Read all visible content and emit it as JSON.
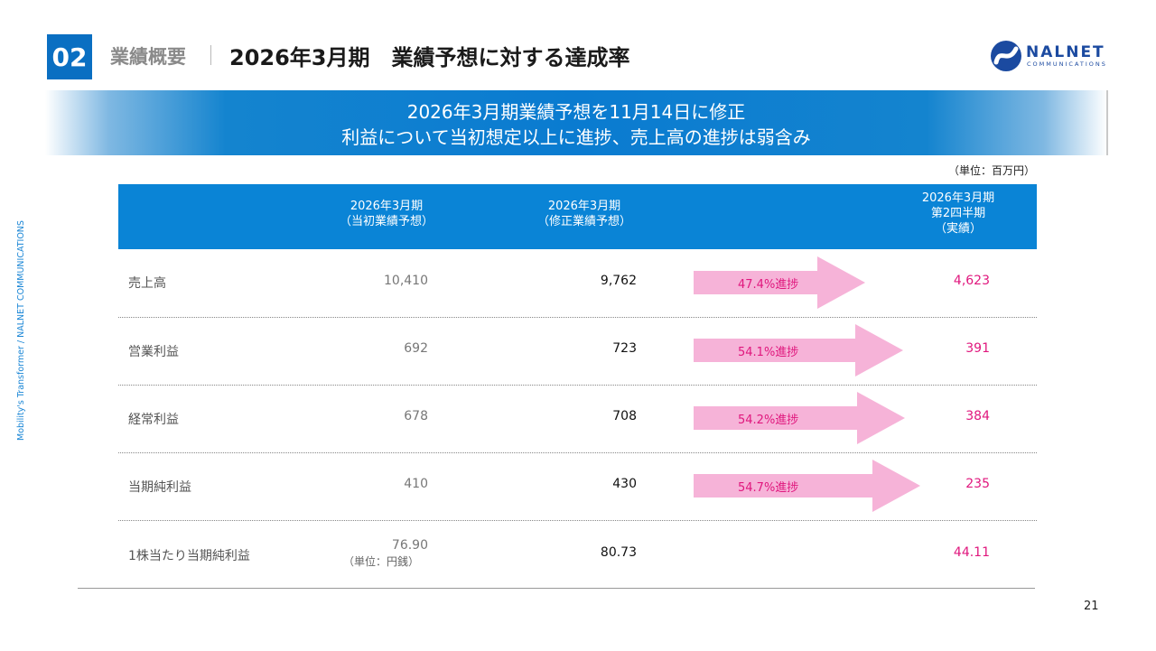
{
  "header": {
    "section_number": "02",
    "section_label": "業績概要",
    "title": "2026年3月期　業績予想に対する達成率"
  },
  "logo": {
    "name": "NALNET",
    "sub": "COMMUNICATIONS",
    "brand_color": "#1b4aa0"
  },
  "banner": {
    "line1": "2026年3月期業績予想を11月14日に修正",
    "line2": "利益について当初想定以上に進捗、売上高の進捗は弱含み",
    "color": "#0a7bd0"
  },
  "unit_note": "（単位：百万円）",
  "side_text": "Mobility's Transformer / NALNET COMMUNICATIONS",
  "table": {
    "header_color": "#0a84d6",
    "columns": [
      "2026年3月期\n（当初業績予想）",
      "2026年3月期\n（修正業績予想）",
      "2026年3月期\n第2四半期\n（実績）"
    ],
    "rows": [
      {
        "label": "売上高",
        "initial": "10,410",
        "revised": "9,762",
        "progress": "47.4%進捗",
        "progress_value": 47.4,
        "actual": "4,623"
      },
      {
        "label": "営業利益",
        "initial": "692",
        "revised": "723",
        "progress": "54.1%進捗",
        "progress_value": 54.1,
        "actual": "391"
      },
      {
        "label": "経常利益",
        "initial": "678",
        "revised": "708",
        "progress": "54.2%進捗",
        "progress_value": 54.2,
        "actual": "384"
      },
      {
        "label": "当期純利益",
        "initial": "410",
        "revised": "430",
        "progress": "54.7%進捗",
        "progress_value": 54.7,
        "actual": "235"
      },
      {
        "label": "1株当たり当期純利益",
        "initial": "76.90",
        "initial_unit": "（単位：円銭）",
        "revised": "80.73",
        "actual": "44.11"
      }
    ],
    "arrow_color": "#f6b3d8",
    "accent_color": "#e0177d"
  },
  "page_number": "21"
}
